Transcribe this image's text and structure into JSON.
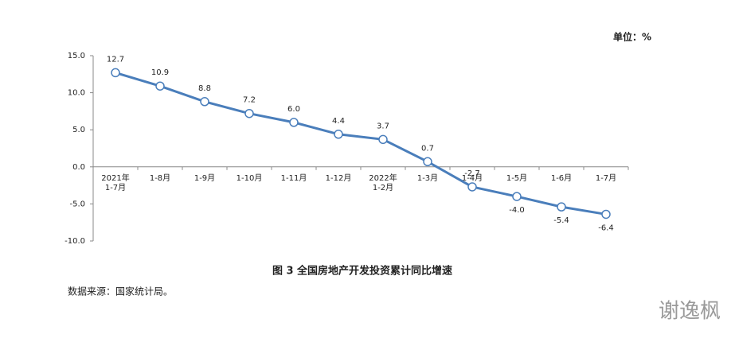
{
  "chart_data": {
    "type": "line",
    "title": "图 3   全国房地产开发投资累计同比增速",
    "unit": "单位：%",
    "source": "数据来源：国家统计局。",
    "watermark": "谢逸枫",
    "categories": [
      "2021年\n1-7月",
      "1-8月",
      "1-9月",
      "1-10月",
      "1-11月",
      "1-12月",
      "2022年\n1-2月",
      "1-3月",
      "1-4月",
      "1-5月",
      "1-6月",
      "1-7月"
    ],
    "values": [
      12.7,
      10.9,
      8.8,
      7.2,
      6.0,
      4.4,
      3.7,
      0.7,
      -2.7,
      -4.0,
      -5.4,
      -6.4
    ],
    "value_labels": [
      "12.7",
      "10.9",
      "8.8",
      "7.2",
      "6.0",
      "4.4",
      "3.7",
      "0.7",
      "-2.7",
      "-4.0",
      "-5.4",
      "-6.4"
    ],
    "color": "#4a7ebb",
    "ylim": [
      -10,
      15
    ],
    "yticks": [
      {
        "value": -10,
        "label": "-10.0"
      },
      {
        "value": -5,
        "label": "-5.0"
      },
      {
        "value": 0,
        "label": "0.0"
      },
      {
        "value": 5,
        "label": "5.0"
      },
      {
        "value": 10,
        "label": "10.0"
      },
      {
        "value": 15,
        "label": "15.0"
      }
    ]
  }
}
